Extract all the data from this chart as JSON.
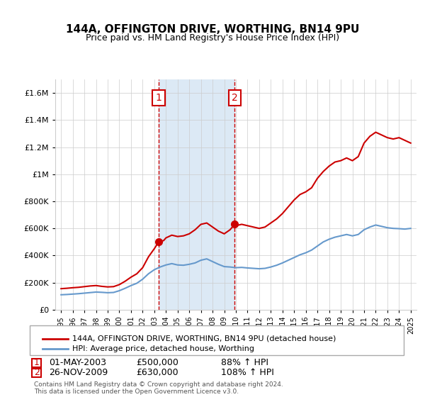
{
  "title": "144A, OFFINGTON DRIVE, WORTHING, BN14 9PU",
  "subtitle": "Price paid vs. HM Land Registry's House Price Index (HPI)",
  "footer": "Contains HM Land Registry data © Crown copyright and database right 2024.\nThis data is licensed under the Open Government Licence v3.0.",
  "legend_entry1": "144A, OFFINGTON DRIVE, WORTHING, BN14 9PU (detached house)",
  "legend_entry2": "HPI: Average price, detached house, Worthing",
  "marker1_label": "1",
  "marker1_date": "01-MAY-2003",
  "marker1_price": "£500,000",
  "marker1_hpi": "88% ↑ HPI",
  "marker1_x": 2003.37,
  "marker1_y": 500000,
  "marker2_label": "2",
  "marker2_date": "26-NOV-2009",
  "marker2_price": "£630,000",
  "marker2_hpi": "108% ↑ HPI",
  "marker2_x": 2009.9,
  "marker2_y": 630000,
  "shaded_x1": 2003.37,
  "shaded_x2": 2009.9,
  "red_line_color": "#cc0000",
  "blue_line_color": "#6699cc",
  "shade_color": "#dce9f5",
  "marker_box_color": "#cc0000",
  "ylim_min": 0,
  "ylim_max": 1700000,
  "yticks": [
    0,
    200000,
    400000,
    600000,
    800000,
    1000000,
    1200000,
    1400000,
    1600000
  ],
  "ytick_labels": [
    "£0",
    "£200K",
    "£400K",
    "£600K",
    "£800K",
    "£1M",
    "£1.2M",
    "£1.4M",
    "£1.6M"
  ],
  "xlim_min": 1994.5,
  "xlim_max": 2025.5,
  "red_x": [
    1995,
    1995.5,
    1996,
    1996.5,
    1997,
    1997.5,
    1998,
    1998.5,
    1999,
    1999.5,
    2000,
    2000.5,
    2001,
    2001.5,
    2002,
    2002.5,
    2003,
    2003.37,
    2003.8,
    2004,
    2004.5,
    2005,
    2005.5,
    2006,
    2006.5,
    2007,
    2007.5,
    2008,
    2008.5,
    2009,
    2009.5,
    2009.9,
    2010,
    2010.5,
    2011,
    2011.5,
    2012,
    2012.5,
    2013,
    2013.5,
    2014,
    2014.5,
    2015,
    2015.5,
    2016,
    2016.5,
    2017,
    2017.5,
    2018,
    2018.5,
    2019,
    2019.5,
    2020,
    2020.5,
    2021,
    2021.5,
    2022,
    2022.5,
    2023,
    2023.5,
    2024,
    2024.5,
    2025
  ],
  "red_y": [
    155000,
    158000,
    162000,
    165000,
    170000,
    175000,
    178000,
    172000,
    168000,
    170000,
    185000,
    210000,
    240000,
    265000,
    310000,
    390000,
    450000,
    500000,
    510000,
    530000,
    550000,
    540000,
    545000,
    560000,
    590000,
    630000,
    640000,
    610000,
    580000,
    560000,
    590000,
    630000,
    620000,
    630000,
    620000,
    610000,
    600000,
    610000,
    640000,
    670000,
    710000,
    760000,
    810000,
    850000,
    870000,
    900000,
    970000,
    1020000,
    1060000,
    1090000,
    1100000,
    1120000,
    1100000,
    1130000,
    1230000,
    1280000,
    1310000,
    1290000,
    1270000,
    1260000,
    1270000,
    1250000,
    1230000
  ],
  "blue_x": [
    1995,
    1995.5,
    1996,
    1996.5,
    1997,
    1997.5,
    1998,
    1998.5,
    1999,
    1999.5,
    2000,
    2000.5,
    2001,
    2001.5,
    2002,
    2002.5,
    2003,
    2003.5,
    2004,
    2004.5,
    2005,
    2005.5,
    2006,
    2006.5,
    2007,
    2007.5,
    2008,
    2008.5,
    2009,
    2009.5,
    2010,
    2010.5,
    2011,
    2011.5,
    2012,
    2012.5,
    2013,
    2013.5,
    2014,
    2014.5,
    2015,
    2015.5,
    2016,
    2016.5,
    2017,
    2017.5,
    2018,
    2018.5,
    2019,
    2019.5,
    2020,
    2020.5,
    2021,
    2021.5,
    2022,
    2022.5,
    2023,
    2023.5,
    2024,
    2024.5,
    2025
  ],
  "blue_y": [
    110000,
    112000,
    115000,
    118000,
    122000,
    126000,
    130000,
    128000,
    125000,
    127000,
    140000,
    158000,
    178000,
    195000,
    225000,
    265000,
    295000,
    315000,
    330000,
    340000,
    330000,
    328000,
    335000,
    345000,
    365000,
    375000,
    355000,
    335000,
    318000,
    315000,
    310000,
    312000,
    308000,
    305000,
    302000,
    305000,
    315000,
    328000,
    345000,
    365000,
    385000,
    405000,
    420000,
    440000,
    470000,
    500000,
    520000,
    535000,
    545000,
    555000,
    545000,
    555000,
    590000,
    610000,
    625000,
    615000,
    605000,
    600000,
    598000,
    595000,
    600000
  ]
}
